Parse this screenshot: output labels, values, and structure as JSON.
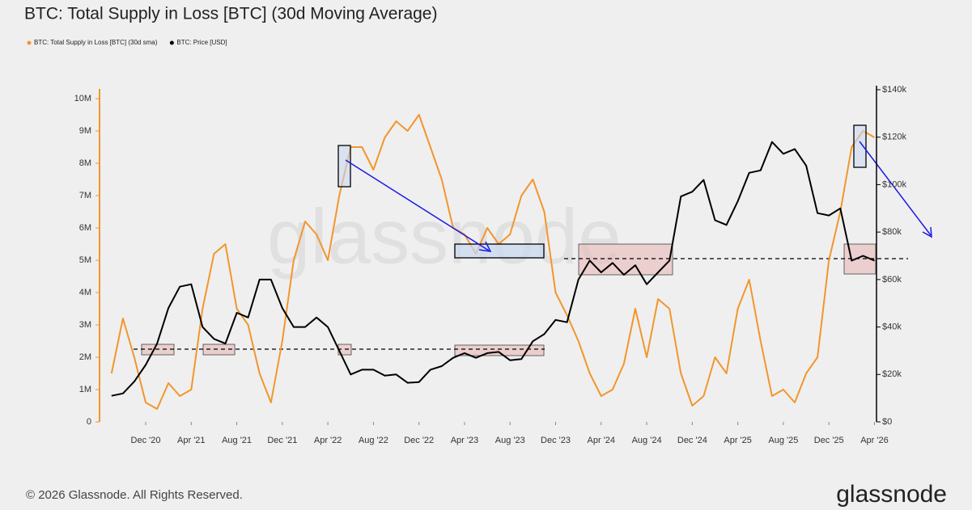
{
  "chart_data": {
    "type": "line",
    "title": "BTC: Total Supply in Loss [BTC] (30d Moving Average)",
    "watermark": "glassnode",
    "footer": "© 2026 Glassnode. All Rights Reserved.",
    "brand": "glassnode",
    "x": [
      "2020-09",
      "2020-10",
      "2020-11",
      "2020-12",
      "2021-01",
      "2021-02",
      "2021-03",
      "2021-04",
      "2021-05",
      "2021-06",
      "2021-07",
      "2021-08",
      "2021-09",
      "2021-10",
      "2021-11",
      "2021-12",
      "2022-01",
      "2022-02",
      "2022-03",
      "2022-04",
      "2022-05",
      "2022-06",
      "2022-07",
      "2022-08",
      "2022-09",
      "2022-10",
      "2022-11",
      "2022-12",
      "2023-01",
      "2023-02",
      "2023-03",
      "2023-04",
      "2023-05",
      "2023-06",
      "2023-07",
      "2023-08",
      "2023-09",
      "2023-10",
      "2023-11",
      "2023-12",
      "2024-01",
      "2024-02",
      "2024-03",
      "2024-04",
      "2024-05",
      "2024-06",
      "2024-07",
      "2024-08",
      "2024-09",
      "2024-10",
      "2024-11",
      "2024-12",
      "2025-01",
      "2025-02",
      "2025-03",
      "2025-04",
      "2025-05",
      "2025-06",
      "2025-07",
      "2025-08",
      "2025-09",
      "2025-10",
      "2025-11",
      "2025-12",
      "2026-01",
      "2026-02",
      "2026-03",
      "2026-04"
    ],
    "series": [
      {
        "name": "BTC: Total Supply in Loss [BTC] (30d sma)",
        "color": "#f2962c",
        "axis": "y",
        "values": [
          1500000,
          3200000,
          2000000,
          600000,
          400000,
          1200000,
          800000,
          1000000,
          3500000,
          5200000,
          5500000,
          3500000,
          3000000,
          1500000,
          600000,
          2500000,
          5000000,
          6200000,
          5800000,
          5000000,
          7000000,
          8500000,
          8500000,
          7800000,
          8800000,
          9300000,
          9000000,
          9500000,
          8500000,
          7500000,
          6000000,
          5800000,
          5200000,
          6000000,
          5500000,
          5800000,
          7000000,
          7500000,
          6500000,
          4000000,
          3300000,
          2500000,
          1500000,
          800000,
          1000000,
          1800000,
          3500000,
          2000000,
          3800000,
          3500000,
          1500000,
          500000,
          800000,
          2000000,
          1500000,
          3500000,
          4400000,
          2500000,
          800000,
          1000000,
          600000,
          1500000,
          2000000,
          5000000,
          6500000,
          8500000,
          9000000,
          8800000
        ]
      },
      {
        "name": "BTC: Price [USD]",
        "color": "#000000",
        "axis": "y2",
        "values": [
          11000,
          12000,
          17000,
          24000,
          33000,
          48000,
          57000,
          58000,
          40000,
          35000,
          33000,
          46000,
          44000,
          60000,
          60000,
          48000,
          40000,
          40000,
          44000,
          40000,
          30000,
          20000,
          22000,
          22000,
          19500,
          20000,
          16500,
          16800,
          22000,
          23500,
          27000,
          29000,
          27000,
          29000,
          29500,
          26000,
          26500,
          34000,
          37000,
          43000,
          42000,
          60000,
          68000,
          63000,
          67000,
          62000,
          66000,
          58000,
          63000,
          68000,
          95000,
          97000,
          102000,
          85000,
          83000,
          93000,
          105000,
          106000,
          118000,
          113000,
          115000,
          108000,
          88000,
          87000,
          90000,
          68000,
          70000,
          68000
        ]
      }
    ],
    "xticks": [
      {
        "value": "2020-12",
        "label": "Dec '20"
      },
      {
        "value": "2021-04",
        "label": "Apr '21"
      },
      {
        "value": "2021-08",
        "label": "Aug '21"
      },
      {
        "value": "2021-12",
        "label": "Dec '21"
      },
      {
        "value": "2022-04",
        "label": "Apr '22"
      },
      {
        "value": "2022-08",
        "label": "Aug '22"
      },
      {
        "value": "2022-12",
        "label": "Dec '22"
      },
      {
        "value": "2023-04",
        "label": "Apr '23"
      },
      {
        "value": "2023-08",
        "label": "Aug '23"
      },
      {
        "value": "2023-12",
        "label": "Dec '23"
      },
      {
        "value": "2024-04",
        "label": "Apr '24"
      },
      {
        "value": "2024-08",
        "label": "Aug '24"
      },
      {
        "value": "2024-12",
        "label": "Dec '24"
      },
      {
        "value": "2025-04",
        "label": "Apr '25"
      },
      {
        "value": "2025-08",
        "label": "Aug '25"
      },
      {
        "value": "2025-12",
        "label": "Dec '25"
      },
      {
        "value": "2026-04",
        "label": "Apr '26"
      }
    ],
    "ylim": [
      0,
      10000000
    ],
    "yticks": [
      0,
      {
        "value": 1000000,
        "label": "1M"
      },
      {
        "value": 2000000,
        "label": "2M"
      },
      {
        "value": 3000000,
        "label": "3M"
      },
      {
        "value": 4000000,
        "label": "4M"
      },
      {
        "value": 5000000,
        "label": "5M"
      },
      {
        "value": 6000000,
        "label": "6M"
      },
      {
        "value": 7000000,
        "label": "7M"
      },
      {
        "value": 8000000,
        "label": "8M"
      },
      {
        "value": 9000000,
        "label": "9M"
      },
      {
        "value": 10000000,
        "label": "10M"
      }
    ],
    "y2lim": [
      0,
      140000
    ],
    "y2ticks": [
      {
        "value": 0,
        "label": "$0"
      },
      {
        "value": 20000,
        "label": "$20k"
      },
      {
        "value": 40000,
        "label": "$40k"
      },
      {
        "value": 60000,
        "label": "$60k"
      },
      {
        "value": 80000,
        "label": "$80k"
      },
      {
        "value": 100000,
        "label": "$100k"
      },
      {
        "value": 120000,
        "label": "$120k"
      },
      {
        "value": 140000,
        "label": "$140k"
      }
    ]
  }
}
